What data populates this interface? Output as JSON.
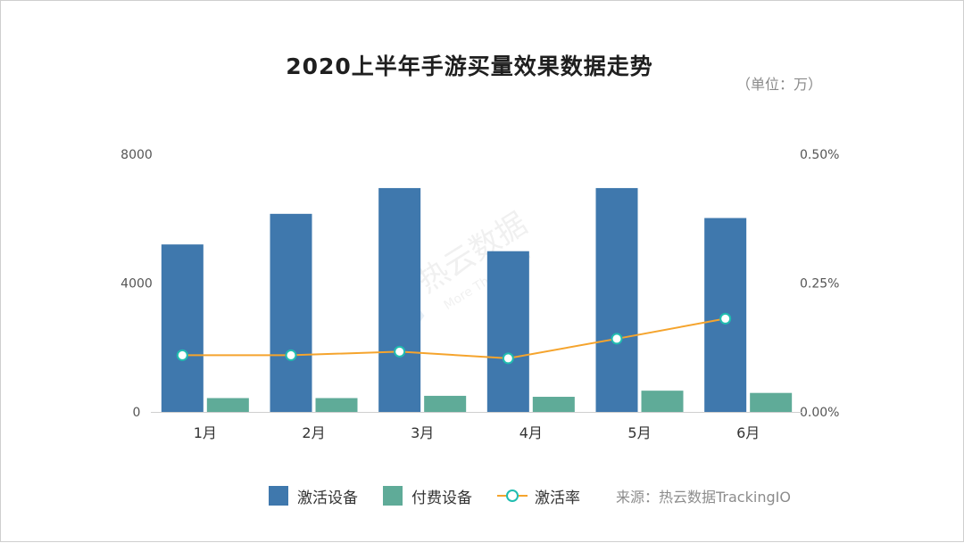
{
  "title": "2020上半年手游买量效果数据走势",
  "unit_label": "（单位：万）",
  "source": "来源：热云数据TrackingIO",
  "watermark": {
    "brand": "热云数据",
    "tagline": "More Than Data"
  },
  "colors": {
    "activations": "#3f78ad",
    "paid": "#5fab98",
    "rate": "#f5a42d",
    "rate_marker": "#21bdb0"
  },
  "chart_data": {
    "type": "bar",
    "title": "2020上半年手游买量效果数据走势",
    "categories": [
      "1月",
      "2月",
      "3月",
      "4月",
      "5月",
      "6月"
    ],
    "series": [
      {
        "name": "激活设备",
        "type": "bar",
        "axis": "left",
        "values": [
          5200,
          6150,
          6950,
          4990,
          6950,
          6020
        ]
      },
      {
        "name": "付费设备",
        "type": "bar",
        "axis": "left",
        "values": [
          430,
          430,
          500,
          470,
          660,
          590
        ]
      },
      {
        "name": "激活率",
        "type": "line",
        "axis": "right",
        "values": [
          0.11,
          0.11,
          0.117,
          0.104,
          0.142,
          0.181
        ]
      }
    ],
    "y_left": {
      "ylim": [
        0,
        8000
      ],
      "ticks": [
        "0",
        "4000",
        "8000"
      ],
      "tick_values": [
        0,
        4000,
        8000
      ]
    },
    "y_right": {
      "ylim": [
        0,
        0.5
      ],
      "ticks": [
        "0.00%",
        "0.25%",
        "0.50%"
      ],
      "tick_values": [
        0,
        0.25,
        0.5
      ]
    },
    "grid": false,
    "legend": "bottom"
  }
}
